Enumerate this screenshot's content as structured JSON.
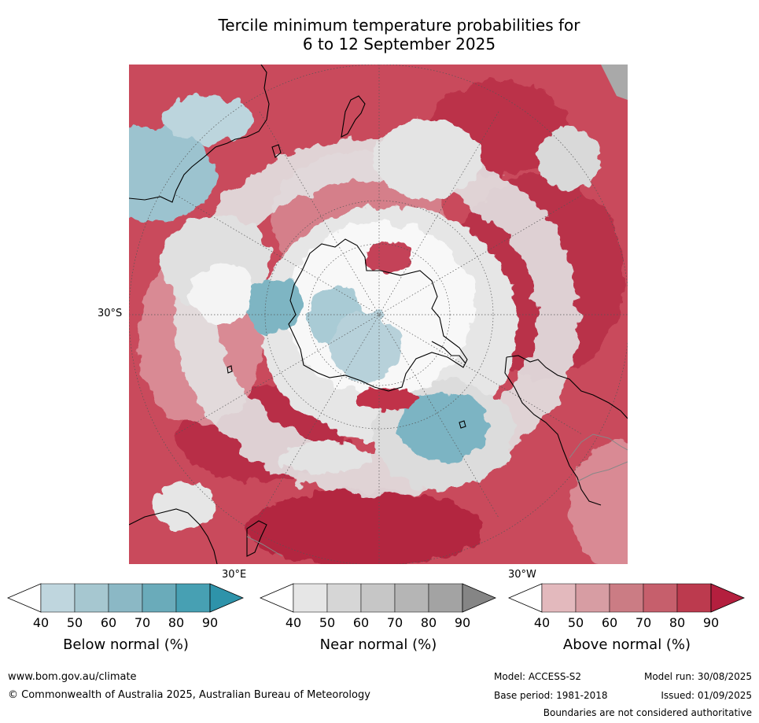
{
  "title_line1": "Tercile minimum temperature probabilities for",
  "title_line2": "6 to 12 September 2025",
  "map": {
    "lat_label": "30°S",
    "lon_label_east": "30°E",
    "lon_label_west": "30°W",
    "colors": {
      "ocean_above": "#c8394e",
      "above_strong": "#b32540",
      "above_light": "#d98a94",
      "near_normal": "#d9d9d9",
      "below_light": "#b9d2db",
      "below_strong": "#5aa7b8",
      "land_outline": "#000000"
    }
  },
  "colorbars": [
    {
      "title": "Below normal (%)",
      "ticks": [
        "40",
        "50",
        "60",
        "70",
        "80",
        "90"
      ],
      "colors": [
        "#ffffff",
        "#bfd6de",
        "#a6c7d0",
        "#8bb8c5",
        "#6aabba",
        "#47a0b3",
        "#2e93aa"
      ]
    },
    {
      "title": "Near normal (%)",
      "ticks": [
        "40",
        "50",
        "60",
        "70",
        "80",
        "90"
      ],
      "colors": [
        "#ffffff",
        "#e6e6e6",
        "#d6d6d6",
        "#c6c6c6",
        "#b5b5b5",
        "#a3a3a3",
        "#858585"
      ]
    },
    {
      "title": "Above normal (%)",
      "ticks": [
        "40",
        "50",
        "60",
        "70",
        "80",
        "90"
      ],
      "colors": [
        "#ffffff",
        "#e3b9bd",
        "#d79da3",
        "#cb7c84",
        "#c65f6c",
        "#bc3a4e",
        "#b41f3e"
      ]
    }
  ],
  "footer": {
    "website": "www.bom.gov.au/climate",
    "copyright": "© Commonwealth of Australia 2025, Australian Bureau of Meteorology",
    "model": "Model: ACCESS-S2",
    "base_period": "Base period: 1981-2018",
    "model_run": "Model run: 30/08/2025",
    "issued": "Issued: 01/09/2025",
    "boundaries": "Boundaries are not considered authoritative"
  }
}
